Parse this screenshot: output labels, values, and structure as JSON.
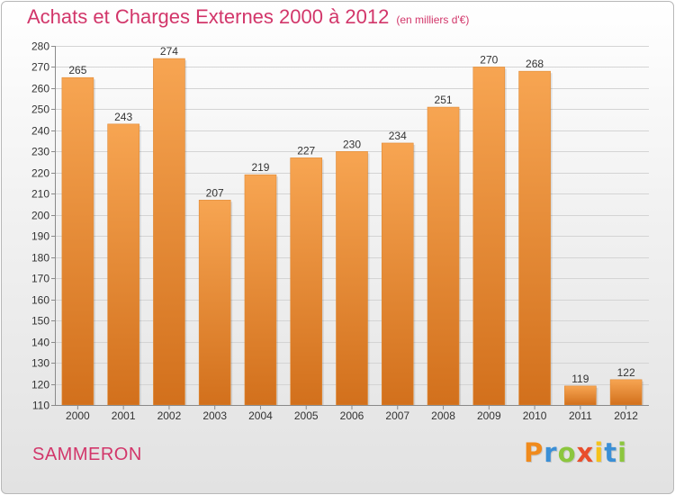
{
  "chart_data": {
    "type": "bar",
    "title": "Achats et Charges Externes 2000 à 2012",
    "subtitle": "(en milliers d'€)",
    "categories": [
      "2000",
      "2001",
      "2002",
      "2003",
      "2004",
      "2005",
      "2006",
      "2007",
      "2008",
      "2009",
      "2010",
      "2011",
      "2012"
    ],
    "values": [
      265,
      243,
      274,
      207,
      219,
      227,
      230,
      234,
      251,
      270,
      268,
      119,
      122
    ],
    "xlabel": "",
    "ylabel": "",
    "ylim": [
      110,
      280
    ],
    "yticks": [
      110,
      120,
      130,
      140,
      150,
      160,
      170,
      180,
      190,
      200,
      210,
      220,
      230,
      240,
      250,
      260,
      270,
      280
    ],
    "grid": true,
    "legend": "none",
    "bar_color_light": "#f7a552",
    "bar_color_dark": "#d2701c"
  },
  "footer": {
    "town": "SAMMERON",
    "logo_text": "Proxiti",
    "logo_colors": [
      "#f08a1c",
      "#3a8fd6",
      "#8cc63e",
      "#e94e2c",
      "#f5c21b",
      "#3a8fd6",
      "#8cc63e"
    ]
  },
  "title_color": "#d2366a"
}
